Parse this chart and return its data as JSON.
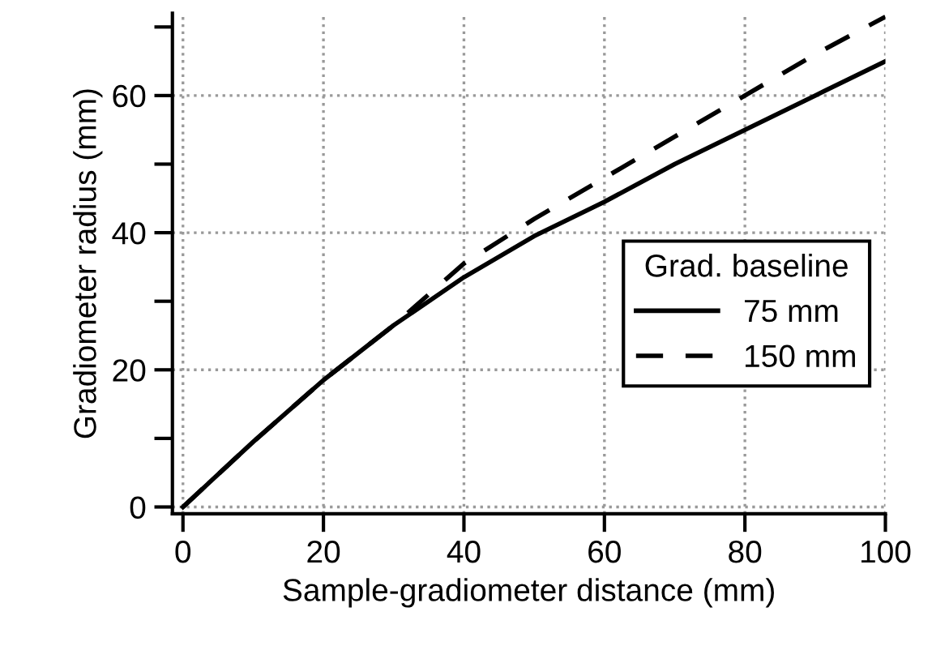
{
  "chart_data": {
    "type": "line",
    "xlabel": "Sample-gradiometer distance (mm)",
    "ylabel": "Gradiometer radius (mm)",
    "legend_title": "Grad. baseline",
    "legend": "right",
    "x": [
      0,
      10,
      20,
      30,
      40,
      50,
      60,
      70,
      80,
      90,
      100
    ],
    "series": [
      {
        "name": "75 mm",
        "color": "#000000",
        "line_style": "solid",
        "values": [
          0,
          9.5,
          18.5,
          26.5,
          33.5,
          39.5,
          44.5,
          50,
          55,
          60,
          65
        ]
      },
      {
        "name": "150 mm",
        "color": "#000000",
        "line_style": "dashed",
        "values": [
          0,
          9.5,
          18.5,
          26.5,
          35.5,
          42,
          48,
          54,
          60,
          66,
          71.5
        ]
      }
    ],
    "xlim": [
      -1.5,
      100
    ],
    "ylim": [
      -1,
      72
    ],
    "xticks": [
      0,
      20,
      40,
      60,
      80,
      100
    ],
    "yticks": [
      0,
      {
        "value": 10,
        "label": null
      },
      20,
      {
        "value": 30,
        "label": null
      },
      40,
      {
        "value": 50,
        "label": null
      },
      60,
      {
        "value": 70,
        "label": null
      }
    ],
    "grid": true
  }
}
